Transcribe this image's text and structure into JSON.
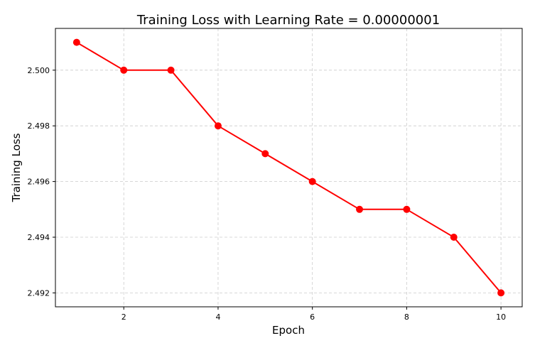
{
  "chart_data": {
    "type": "line",
    "title": "Training Loss with Learning Rate  = 0.00000001",
    "xlabel": "Epoch",
    "ylabel": "Training Loss",
    "xlim": [
      0.55,
      10.45
    ],
    "ylim": [
      2.4915,
      2.5015
    ],
    "grid": true,
    "x_ticks": [
      2,
      4,
      6,
      8,
      10
    ],
    "y_ticks": [
      2.492,
      2.494,
      2.496,
      2.498,
      2.5
    ],
    "x_tick_labels": [
      "2",
      "4",
      "6",
      "8",
      "10"
    ],
    "y_tick_labels": [
      "2.492",
      "2.494",
      "2.496",
      "2.498",
      "2.500"
    ],
    "series": [
      {
        "color": "#ff0000",
        "marker": "circle",
        "x": [
          1,
          2,
          3,
          4,
          5,
          6,
          7,
          8,
          9,
          10
        ],
        "values": [
          2.501,
          2.5,
          2.5,
          2.498,
          2.497,
          2.496,
          2.495,
          2.495,
          2.494,
          2.492
        ]
      }
    ]
  }
}
